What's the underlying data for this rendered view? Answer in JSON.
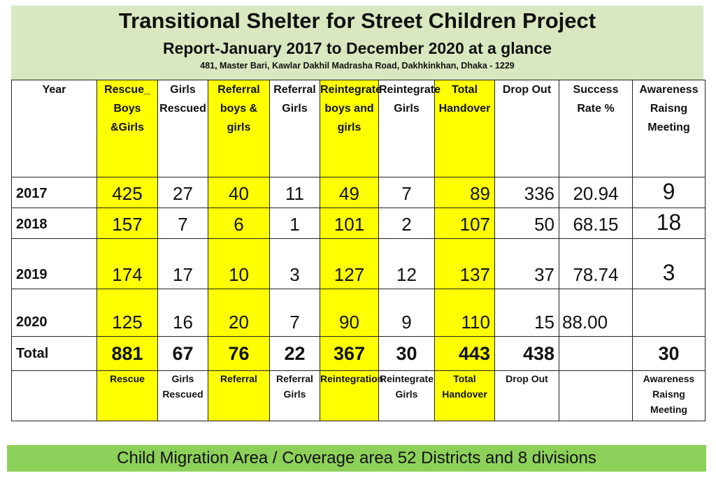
{
  "header": {
    "title": "Transitional Shelter for Street Children Project",
    "subtitle": "Report-January  2017 to December 2020 at a glance",
    "address": "481, Master Bari, Kawlar Dakhil Madrasha Road, Dakhkinkhan, Dhaka - 1229"
  },
  "colors": {
    "header_bg": "#d9e8c0",
    "highlight": "#ffff00",
    "banner_bg": "#8dd05a"
  },
  "table": {
    "headers": [
      "Year",
      "Rescue_ Boys &Girls",
      "Girls Rescued",
      "Referral boys & girls",
      "Referral Girls",
      "Reintegrate boys and girls",
      "Reintegrate Girls",
      "Total Handover",
      "Drop Out",
      "Success Rate %",
      "Awareness Raisng Meeting"
    ],
    "rows": [
      [
        "2017",
        "425",
        "27",
        "40",
        "11",
        "49",
        "7",
        "89",
        "336",
        "20.94",
        "9"
      ],
      [
        "2018",
        "157",
        "7",
        "6",
        "1",
        "101",
        "2",
        "107",
        "50",
        "68.15",
        "18"
      ],
      [
        "2019",
        "174",
        "17",
        "10",
        "3",
        "127",
        "12",
        "137",
        "37",
        "78.74",
        "3"
      ],
      [
        "2020",
        "125",
        "16",
        "20",
        "7",
        "90",
        "9",
        "110",
        "15",
        "88.00",
        ""
      ]
    ],
    "total": [
      "Total",
      "881",
      "67",
      "76",
      "22",
      "367",
      "30",
      "443",
      "438",
      "",
      "30"
    ],
    "footer": [
      "",
      "Rescue",
      "Girls Rescued",
      "Referral",
      "Referral Girls",
      "Reintegration",
      "Reintegrate Girls",
      "Total Handover",
      "Drop Out",
      "",
      "Awareness Raisng Meeting"
    ]
  },
  "banner": {
    "text": "Child Migration Area / Coverage area 52 Districts  and 8 divisions"
  }
}
